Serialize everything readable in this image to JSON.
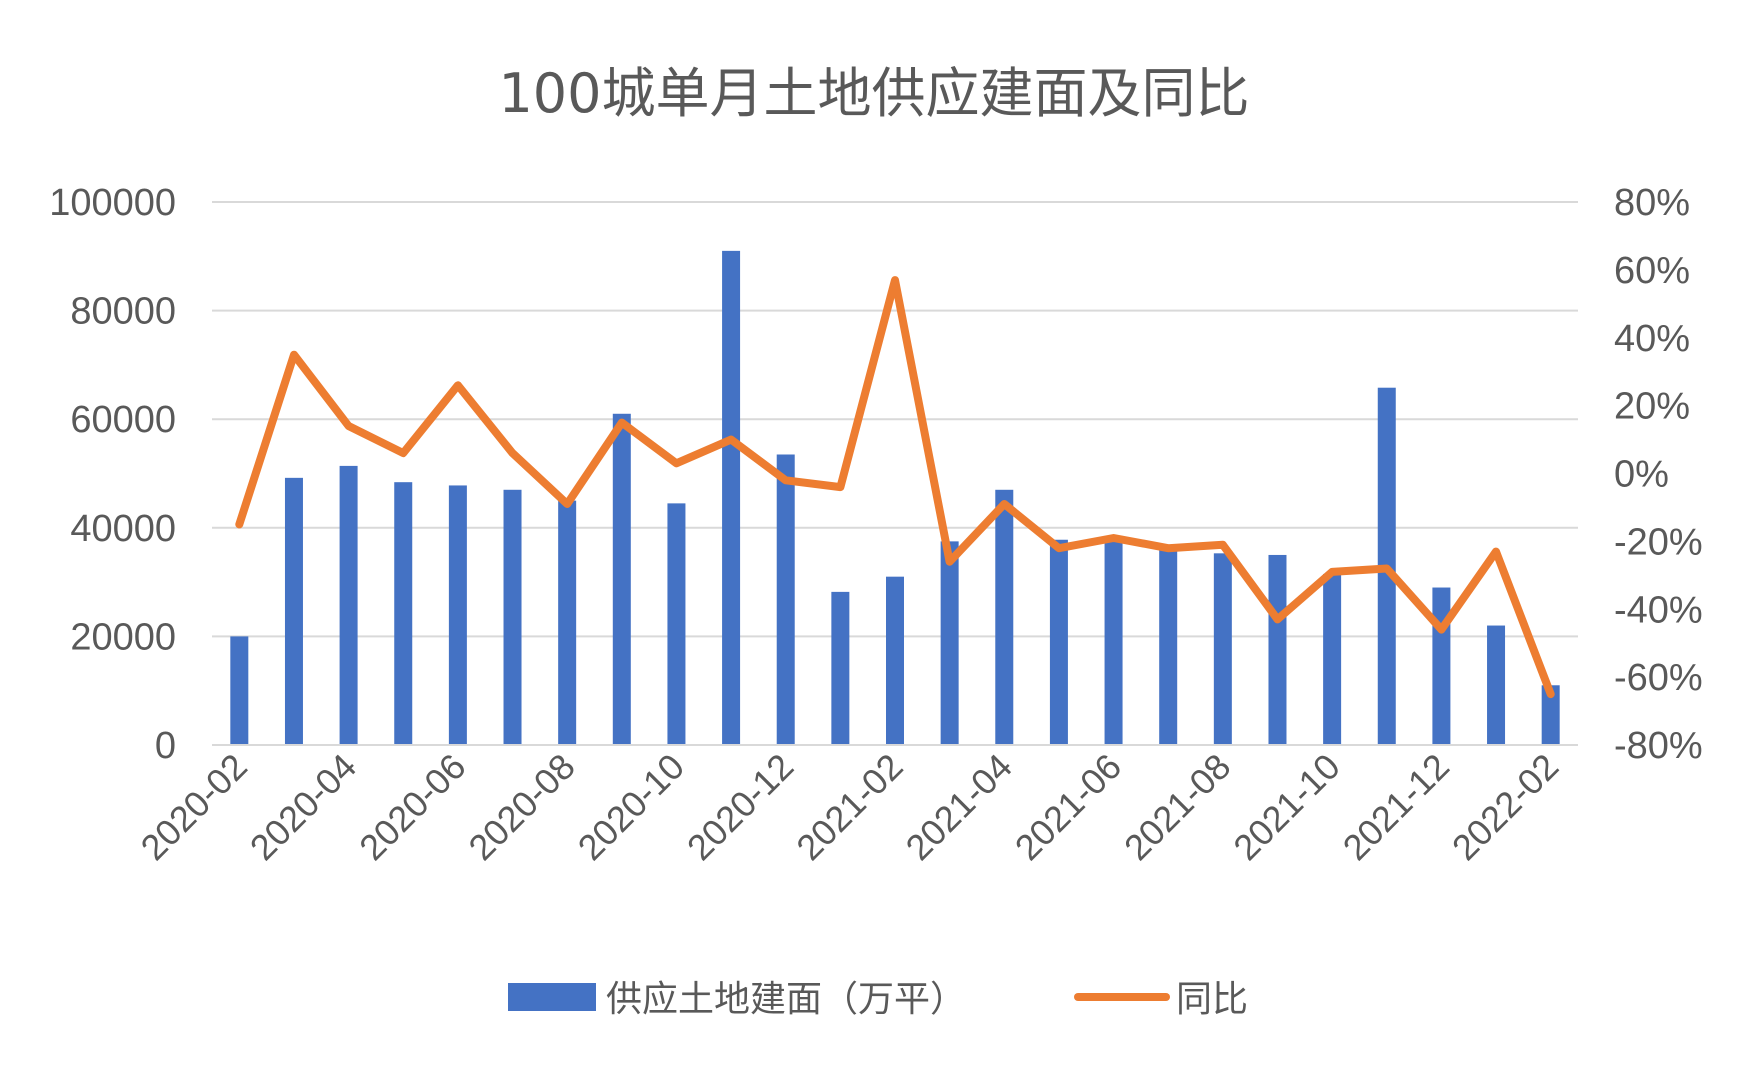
{
  "chart_data": {
    "type": "bar",
    "title": "100城单月土地供应建面及同比",
    "categories": [
      "2020-02",
      "2020-03",
      "2020-04",
      "2020-05",
      "2020-06",
      "2020-07",
      "2020-08",
      "2020-09",
      "2020-10",
      "2020-11",
      "2020-12",
      "2021-01",
      "2021-02",
      "2021-03",
      "2021-04",
      "2021-05",
      "2021-06",
      "2021-07",
      "2021-08",
      "2021-09",
      "2021-10",
      "2021-11",
      "2021-12",
      "2022-01",
      "2022-02"
    ],
    "x_tick_labels": [
      "2020-02",
      "2020-04",
      "2020-06",
      "2020-08",
      "2020-10",
      "2020-12",
      "2021-02",
      "2021-04",
      "2021-06",
      "2021-08",
      "2021-10",
      "2021-12",
      "2022-02"
    ],
    "series": [
      {
        "name": "供应土地建面（万平）",
        "type": "bar",
        "axis": "left",
        "color": "#4472c4",
        "values": [
          20000,
          49200,
          51400,
          48400,
          47800,
          47000,
          45000,
          61000,
          44500,
          91000,
          53500,
          28200,
          31000,
          37500,
          47000,
          37800,
          38500,
          36500,
          35300,
          35000,
          31500,
          65800,
          29000,
          22000,
          11000
        ]
      },
      {
        "name": "同比",
        "type": "line",
        "axis": "right",
        "color": "#ed7d31",
        "values": [
          -0.15,
          0.35,
          0.14,
          0.06,
          0.26,
          0.06,
          -0.09,
          0.15,
          0.03,
          0.1,
          -0.02,
          -0.04,
          0.57,
          -0.26,
          -0.09,
          -0.22,
          -0.19,
          -0.22,
          -0.21,
          -0.43,
          -0.29,
          -0.28,
          -0.46,
          -0.23,
          -0.65
        ]
      }
    ],
    "yaxis_left": {
      "min": 0,
      "max": 100000,
      "ticks": [
        "0",
        "20000",
        "40000",
        "60000",
        "80000",
        "100000"
      ]
    },
    "yaxis_right": {
      "min": -0.8,
      "max": 0.8,
      "ticks": [
        "-80%",
        "-60%",
        "-40%",
        "-20%",
        "0%",
        "20%",
        "40%",
        "60%",
        "80%"
      ]
    },
    "grid": true,
    "legend_position": "bottom"
  }
}
